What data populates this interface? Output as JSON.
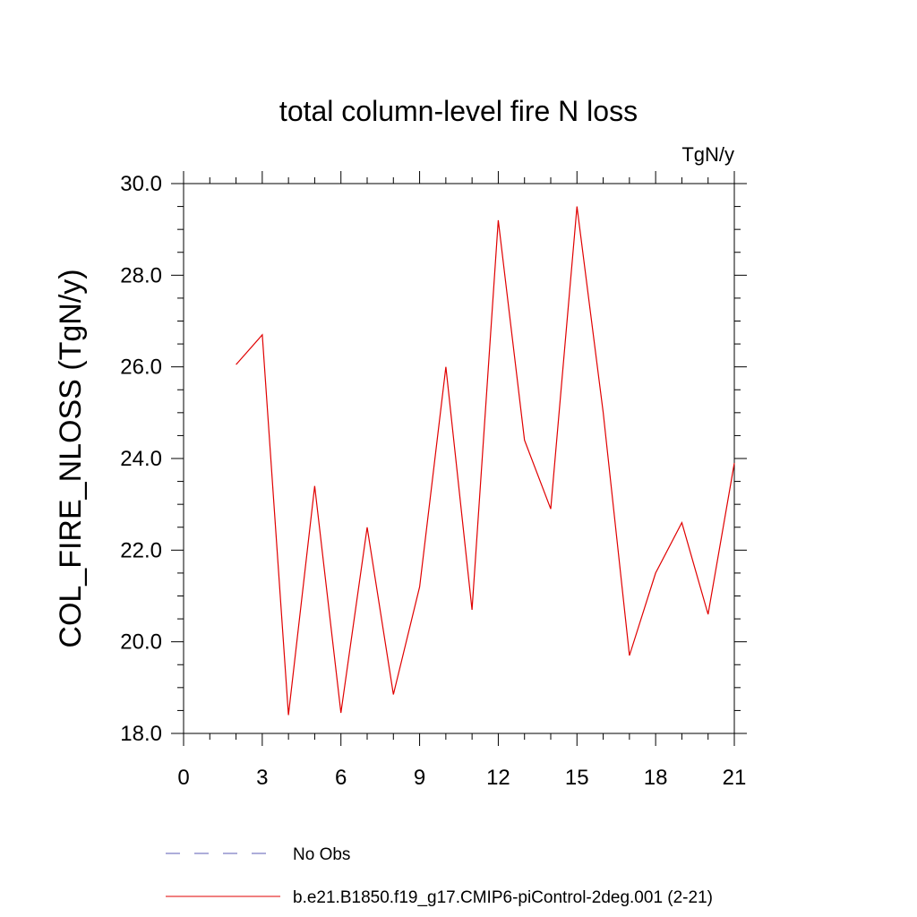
{
  "chart_data": {
    "type": "line",
    "title": "total column-level fire N loss",
    "units": "TgN/y",
    "ylabel": "COL_FIRE_NLOSS  (TgN/y)",
    "xlabel": "",
    "xlim": [
      0,
      21
    ],
    "ylim": [
      18.0,
      30.0
    ],
    "xticks": [
      0,
      3,
      6,
      9,
      12,
      15,
      18,
      21
    ],
    "yticks": [
      18.0,
      20.0,
      22.0,
      24.0,
      26.0,
      28.0,
      30.0
    ],
    "ytick_labels": [
      "18.0",
      "20.0",
      "22.0",
      "24.0",
      "26.0",
      "28.0",
      "30.0"
    ],
    "grid": false,
    "legend_position": "bottom",
    "series": [
      {
        "name": "No Obs",
        "color": "#5b5bb5",
        "style": "dashed",
        "x": [],
        "values": []
      },
      {
        "name": "b.e21.B1850.f19_g17.CMIP6-piControl-2deg.001 (2-21)",
        "color": "#e00000",
        "style": "solid",
        "x": [
          2,
          3,
          4,
          5,
          6,
          7,
          8,
          9,
          10,
          11,
          12,
          13,
          14,
          15,
          16,
          17,
          18,
          19,
          20,
          21
        ],
        "values": [
          26.05,
          26.7,
          18.4,
          23.4,
          18.45,
          22.5,
          18.85,
          21.2,
          26.0,
          20.7,
          29.2,
          24.4,
          22.9,
          29.5,
          25.0,
          19.7,
          21.5,
          22.6,
          20.6,
          23.9
        ]
      }
    ]
  }
}
